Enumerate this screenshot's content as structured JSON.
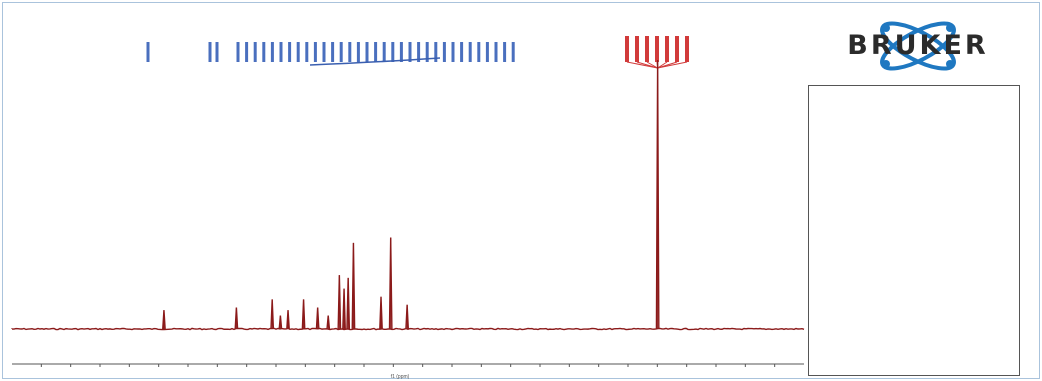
{
  "chart_data": {
    "type": "line",
    "title": "",
    "xlabel": "f1 (ppm)",
    "ylabel": "",
    "xlim": [
      260,
      -10
    ],
    "x_ticks": [
      250,
      240,
      230,
      220,
      210,
      200,
      190,
      180,
      170,
      160,
      150,
      140,
      130,
      120,
      110,
      100,
      90,
      80,
      70,
      60,
      50,
      40,
      30,
      20,
      10,
      0
    ],
    "x_tick_labels": [
      "",
      "",
      "",
      "",
      "",
      "",
      "",
      "",
      "",
      "",
      "",
      "",
      "",
      "",
      "",
      "",
      "",
      "",
      "",
      "",
      "",
      "",
      "",
      "",
      "",
      ""
    ],
    "baseline_color": "#8b1a1a",
    "series": [
      {
        "peaks": [
          {
            "x": 208.2,
            "height": 0.07
          },
          {
            "x": 183.5,
            "height": 0.08
          },
          {
            "x": 171.3,
            "height": 0.11
          },
          {
            "x": 168.5,
            "height": 0.05
          },
          {
            "x": 165.9,
            "height": 0.07
          },
          {
            "x": 160.6,
            "height": 0.11
          },
          {
            "x": 155.8,
            "height": 0.08
          },
          {
            "x": 152.2,
            "height": 0.05
          },
          {
            "x": 148.4,
            "height": 0.2
          },
          {
            "x": 146.8,
            "height": 0.15
          },
          {
            "x": 145.4,
            "height": 0.19
          },
          {
            "x": 143.6,
            "height": 0.32
          },
          {
            "x": 134.2,
            "height": 0.12
          },
          {
            "x": 130.9,
            "height": 0.34
          },
          {
            "x": 125.3,
            "height": 0.09
          },
          {
            "x": 39.9,
            "height": 1.0
          }
        ]
      }
    ],
    "peak_labels_blue": [
      "",
      "",
      "",
      "",
      "",
      "",
      "",
      "",
      "",
      "",
      "",
      "",
      "",
      "",
      "",
      "",
      "",
      "",
      "",
      "",
      "",
      "",
      "",
      "",
      "",
      "",
      "",
      "",
      "",
      "",
      "",
      "",
      "",
      "",
      "",
      ""
    ],
    "peak_labels_red": [
      "",
      "",
      "",
      "",
      "",
      "",
      ""
    ]
  },
  "logo": {
    "text": "BRUKER",
    "colors": {
      "orbit": "#1f78c1",
      "text": "#2b2b2b"
    }
  },
  "parameters_table": {
    "title": "",
    "col_parameter": "",
    "col_value": "",
    "rows": [
      {
        "n": "",
        "k": "",
        "v": ""
      },
      {
        "n": "",
        "k": "",
        "v": ""
      },
      {
        "n": "",
        "k": "",
        "v": ""
      },
      {
        "n": "",
        "k": "",
        "v": ""
      },
      {
        "n": "",
        "k": "",
        "v": ""
      },
      {
        "n": "",
        "k": "",
        "v": ""
      },
      {
        "n": "",
        "k": "",
        "v": ""
      },
      {
        "n": "",
        "k": "",
        "v": ""
      },
      {
        "n": "",
        "k": "",
        "v": ""
      },
      {
        "n": "",
        "k": "",
        "v": ""
      },
      {
        "n": "",
        "k": "",
        "v": ""
      },
      {
        "n": "",
        "k": "",
        "v": ""
      },
      {
        "n": "",
        "k": "",
        "v": ""
      },
      {
        "n": "",
        "k": "",
        "v": ""
      },
      {
        "n": "",
        "k": "",
        "v": ""
      },
      {
        "n": "",
        "k": "",
        "v": ""
      },
      {
        "n": "",
        "k": "",
        "v": ""
      },
      {
        "n": "",
        "k": "",
        "v": ""
      },
      {
        "n": "",
        "k": "",
        "v": ""
      },
      {
        "n": "",
        "k": "",
        "v": ""
      },
      {
        "n": "",
        "k": "",
        "v": ""
      },
      {
        "n": "",
        "k": "",
        "v": ""
      },
      {
        "n": "",
        "k": "",
        "v": ""
      },
      {
        "n": "",
        "k": "",
        "v": ""
      },
      {
        "n": "",
        "k": "",
        "v": ""
      },
      {
        "n": "",
        "k": "",
        "v": ""
      },
      {
        "n": "",
        "k": "",
        "v": ""
      },
      {
        "n": "",
        "k": "",
        "v": ""
      },
      {
        "n": "",
        "k": "",
        "v": ""
      },
      {
        "n": "",
        "k": "",
        "v": ""
      },
      {
        "n": "",
        "k": "",
        "v": ""
      },
      {
        "n": "",
        "k": "",
        "v": ""
      }
    ]
  }
}
